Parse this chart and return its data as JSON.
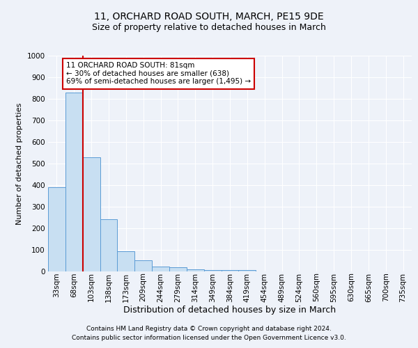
{
  "title": "11, ORCHARD ROAD SOUTH, MARCH, PE15 9DE",
  "subtitle": "Size of property relative to detached houses in March",
  "xlabel": "Distribution of detached houses by size in March",
  "ylabel": "Number of detached properties",
  "footer_line1": "Contains HM Land Registry data © Crown copyright and database right 2024.",
  "footer_line2": "Contains public sector information licensed under the Open Government Licence v3.0.",
  "categories": [
    "33sqm",
    "68sqm",
    "103sqm",
    "138sqm",
    "173sqm",
    "209sqm",
    "244sqm",
    "279sqm",
    "314sqm",
    "349sqm",
    "384sqm",
    "419sqm",
    "454sqm",
    "489sqm",
    "524sqm",
    "560sqm",
    "595sqm",
    "630sqm",
    "665sqm",
    "700sqm",
    "735sqm"
  ],
  "values": [
    390,
    830,
    530,
    243,
    95,
    52,
    22,
    18,
    11,
    8,
    8,
    5,
    0,
    0,
    0,
    0,
    0,
    0,
    0,
    0,
    0
  ],
  "bar_color": "#c8dff2",
  "bar_edge_color": "#5b9bd5",
  "annotation_text": "11 ORCHARD ROAD SOUTH: 81sqm\n← 30% of detached houses are smaller (638)\n69% of semi-detached houses are larger (1,495) →",
  "annotation_box_color": "#ffffff",
  "annotation_box_edge": "#cc0000",
  "red_line_x": 1.5,
  "ylim": [
    0,
    1000
  ],
  "yticks": [
    0,
    100,
    200,
    300,
    400,
    500,
    600,
    700,
    800,
    900,
    1000
  ],
  "background_color": "#eef2f9",
  "grid_color": "#ffffff",
  "title_fontsize": 10,
  "subtitle_fontsize": 9,
  "xlabel_fontsize": 9,
  "ylabel_fontsize": 8,
  "tick_fontsize": 7.5,
  "annotation_fontsize": 7.5,
  "footer_fontsize": 6.5
}
